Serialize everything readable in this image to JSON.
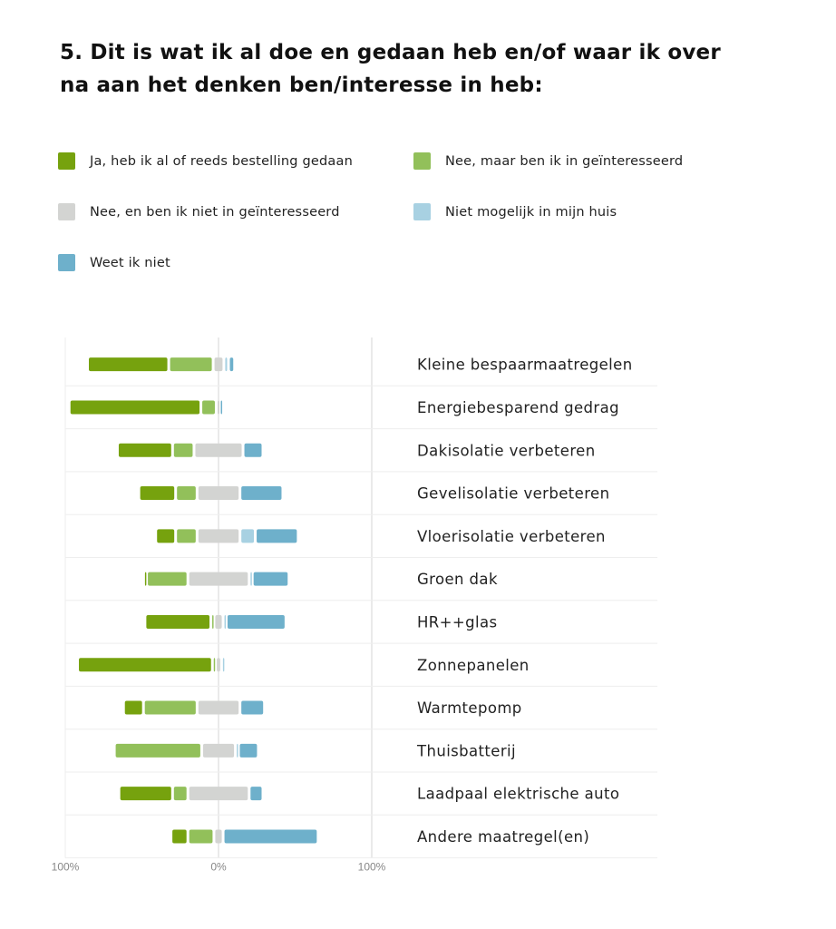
{
  "title": "5. Dit is wat ik al doe en gedaan heb en/of waar ik over na aan het denken ben/interesse in heb:",
  "chart_data": {
    "type": "bar",
    "subtype": "diverging-stacked-horizontal",
    "title": "5. Dit is wat ik al doe en gedaan heb en/of waar ik over na aan het denken ben/interesse in heb:",
    "xlabel": "",
    "ylabel": "",
    "xlim": [
      -100,
      100
    ],
    "x_ticks": [
      "100%",
      "0%",
      "100%"
    ],
    "grid": true,
    "legend_position": "top",
    "neutral_series": "Nee, en ben ik niet in geïnteresseerd",
    "categories": [
      "Kleine bespaarmaatregelen",
      "Energiebesparend gedrag",
      "Dakisolatie verbeteren",
      "Gevelisolatie verbeteren",
      "Vloerisolatie verbeteren",
      "Groen dak",
      "HR++glas",
      "Zonnepanelen",
      "Warmtepomp",
      "Thuisbatterij",
      "Laadpaal elektrische auto",
      "Andere maatregel(en)"
    ],
    "series": [
      {
        "name": "Ja, heb ik al of reeds bestelling gedaan",
        "color": "#76a20e",
        "side": "left",
        "values": [
          53,
          86,
          36,
          24,
          13,
          1,
          43,
          88,
          13,
          0,
          35,
          11
        ]
      },
      {
        "name": "Nee, maar ben ik in geïnteresseerd",
        "color": "#92c05a",
        "side": "left",
        "values": [
          29,
          10,
          14,
          14,
          14,
          27,
          2,
          2,
          35,
          57,
          10,
          17
        ]
      },
      {
        "name": "Nee, en ben ik niet in geïnteresseerd",
        "color": "#d3d4d2",
        "side": "neutral",
        "values": [
          7,
          3,
          32,
          28,
          28,
          40,
          6,
          4,
          28,
          22,
          40,
          6
        ]
      },
      {
        "name": "Niet mogelijk in mijn huis",
        "color": "#a8d1e2",
        "side": "right",
        "values": [
          3,
          0,
          0,
          0,
          10,
          2,
          2,
          2,
          0,
          2,
          0,
          0
        ]
      },
      {
        "name": "Weet ik niet",
        "color": "#6eb0cb",
        "side": "right",
        "values": [
          4,
          1,
          13,
          28,
          28,
          24,
          39,
          0,
          16,
          13,
          9,
          62
        ]
      }
    ]
  }
}
